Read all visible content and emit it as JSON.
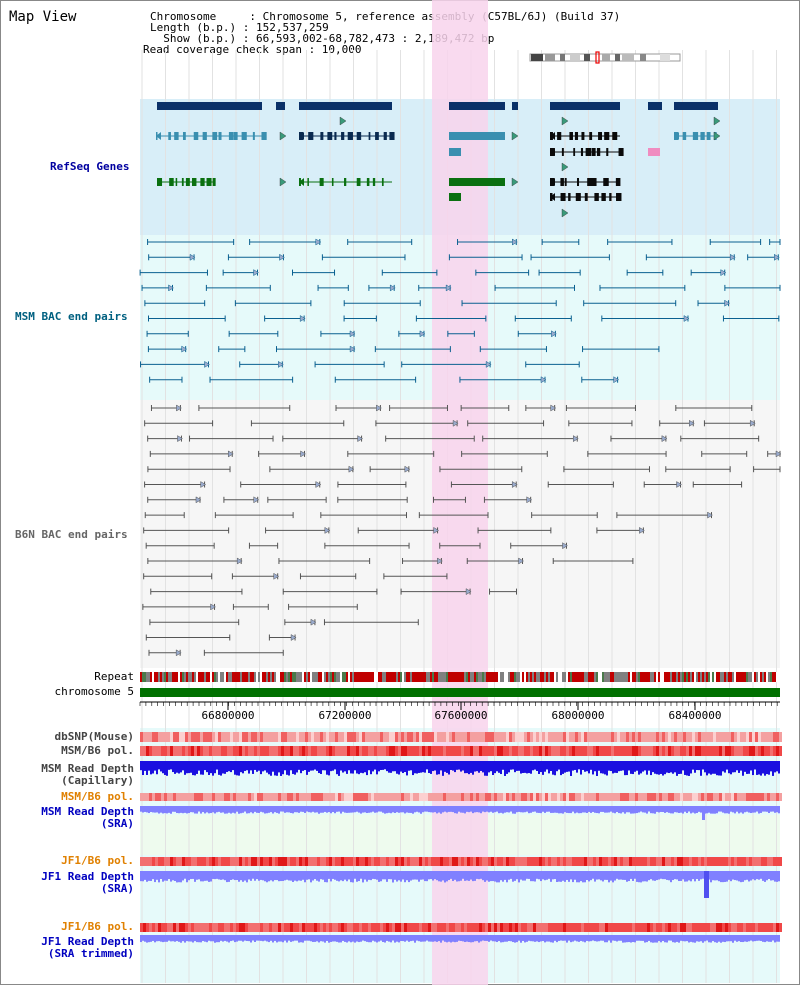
{
  "view_title": "Map View",
  "info": {
    "chromosome_line": "Chromosome     : Chromosome 5, reference assembly (C57BL/6J) (Build 37)",
    "length_line": "Length (b.p.) : 152,537,259",
    "show_line": "  Show (b.p.) : 66,593,002-68,782,473 : 2,189,472 bp",
    "coverage_line": "Read coverage check span : 10,000"
  },
  "tracks": {
    "refseq": "RefSeq Genes",
    "msm_bac": "MSM BAC end pairs",
    "b6n_bac": "B6N BAC end pairs",
    "repeat": "Repeat",
    "chromosome": "chromosome 5",
    "dbsnp": "dbSNP(Mouse)",
    "msm_b6_pol": "MSM/B6 pol.",
    "msm_read_depth_cap_1": "MSM Read Depth",
    "msm_read_depth_cap_2": "(Capillary)",
    "msm_b6_pol2": "MSM/B6 pol.",
    "msm_read_depth_sra_1": "MSM Read Depth",
    "msm_read_depth_sra_2": "(SRA)",
    "jf1_b6_pol": "JF1/B6 pol.",
    "jf1_read_depth_sra_1": "JF1 Read Depth",
    "jf1_read_depth_sra_2": "(SRA)",
    "jf1_b6_pol2": "JF1/B6 pol.",
    "jf1_read_depth_trim_1": "JF1 Read Depth",
    "jf1_read_depth_trim_2": "(SRA trimmed)"
  },
  "axis": {
    "ticks": [
      "66800000",
      "67200000",
      "67600000",
      "68000000",
      "68400000"
    ]
  },
  "colors": {
    "refseq_bg": "#d8eef8",
    "msm_bg": "#e6fafa",
    "b6n_bg": "#f6f6f6",
    "highlight": "#f8d4ec",
    "refseq_dark": "#0a3068",
    "refseq_mid": "#3a8fb0",
    "refseq_green": "#0a7010",
    "msm_line": "#0a6090",
    "b6n_line": "#555555",
    "chromosome_bar": "#007000",
    "depth_msm_cap": "#1a10e0",
    "depth_sra": "#8080ff",
    "label_blue": "#0000a0",
    "label_orange": "#e08000",
    "label_teal": "#006080"
  }
}
